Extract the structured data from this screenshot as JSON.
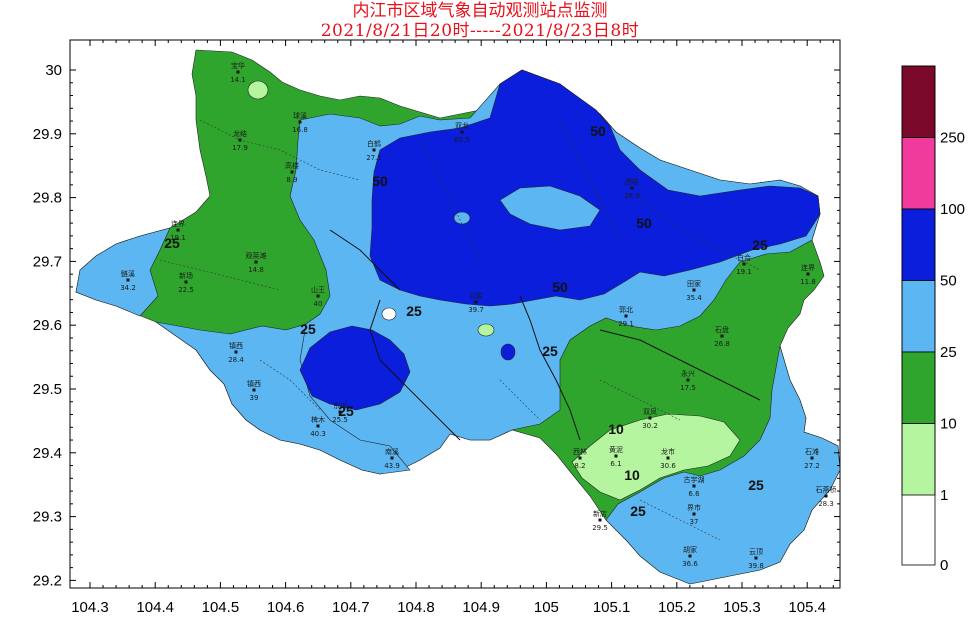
{
  "title": {
    "line1": "内江市区域气象自动观测站点监测",
    "line2": "2021/8/21日20时-----2021/8/23日8时"
  },
  "axes": {
    "lon_ticks": [
      "104.3",
      "104.4",
      "104.5",
      "104.6",
      "104.7",
      "104.8",
      "104.9",
      "105",
      "105.1",
      "105.2",
      "105.3",
      "105.4"
    ],
    "lat_ticks": [
      "30",
      "29.9",
      "29.8",
      "29.7",
      "29.6",
      "29.5",
      "29.4",
      "29.3",
      "29.2"
    ]
  },
  "legend": {
    "bands": [
      {
        "label": "250",
        "color": "#7b0a2a"
      },
      {
        "label": "100",
        "color": "#f13b9c"
      },
      {
        "label": "50",
        "color": "#0a1edc"
      },
      {
        "label": "25",
        "color": "#5bb6f2"
      },
      {
        "label": "10",
        "color": "#30a52e"
      },
      {
        "label": "1",
        "color": "#b5f5a0"
      },
      {
        "label": "0",
        "color": "#ffffff"
      }
    ]
  },
  "contour_labels": [
    "25",
    "50",
    "50",
    "50",
    "25",
    "25",
    "50",
    "25",
    "25",
    "25",
    "10",
    "10",
    "25",
    "25"
  ],
  "stations": [
    {
      "name": "宝华",
      "value": "14.1"
    },
    {
      "name": "龙结",
      "value": "17.9"
    },
    {
      "name": "球溪",
      "value": "16.8"
    },
    {
      "name": "高楼",
      "value": "8.9"
    },
    {
      "name": "白鹤",
      "value": "27.1"
    },
    {
      "name": "双龙",
      "value": "60.5"
    },
    {
      "name": "连界",
      "value": "19.1"
    },
    {
      "name": "鲢溪",
      "value": "34.2"
    },
    {
      "name": "新场",
      "value": "22.5"
    },
    {
      "name": "观英滩",
      "value": "14.8"
    },
    {
      "name": "山王",
      "value": "40"
    },
    {
      "name": "镇西",
      "value": "28.4"
    },
    {
      "name": "镇西",
      "value": "39"
    },
    {
      "name": "椑木",
      "value": "40.3"
    },
    {
      "name": "南溪",
      "value": "43.9"
    },
    {
      "name": "公民",
      "value": "39.7"
    },
    {
      "name": "郭北",
      "value": "29.1"
    },
    {
      "name": "永兴",
      "value": "17.5"
    },
    {
      "name": "双凤",
      "value": "30.2"
    },
    {
      "name": "黄泥",
      "value": "6.1"
    },
    {
      "name": "古宇湖",
      "value": "6.6"
    },
    {
      "name": "石燕桥",
      "value": "28.3"
    },
    {
      "name": "胡家",
      "value": "36.6"
    },
    {
      "name": "云顶",
      "value": "39.8"
    },
    {
      "name": "团结",
      "value": "28.9"
    },
    {
      "name": "田家",
      "value": "35.4"
    },
    {
      "name": "石盘",
      "value": "26.8"
    },
    {
      "name": "连界",
      "value": "11.8"
    },
    {
      "name": "白合",
      "value": "19.1"
    },
    {
      "name": "石滩",
      "value": "27.2"
    },
    {
      "name": "西林",
      "value": "8.2"
    },
    {
      "name": "龙市",
      "value": "30.6"
    },
    {
      "name": "新店",
      "value": "29.5"
    },
    {
      "name": "界市",
      "value": "37"
    },
    {
      "name": "东兴",
      "value": "25.5"
    }
  ]
}
